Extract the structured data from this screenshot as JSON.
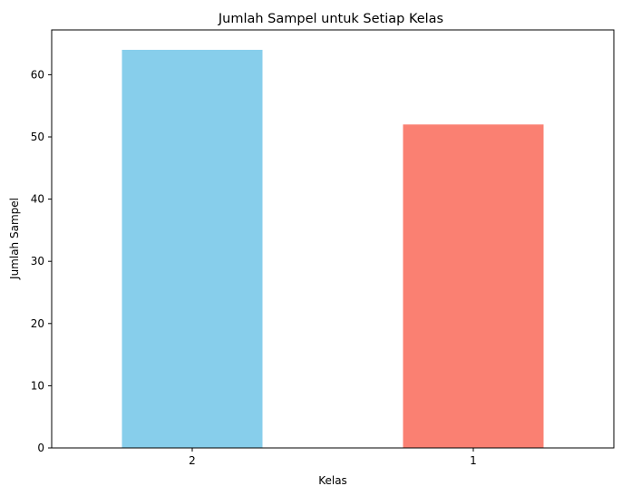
{
  "chart_data": {
    "type": "bar",
    "title": "Jumlah Sampel untuk Setiap Kelas",
    "xlabel": "Kelas",
    "ylabel": "Jumlah Sampel",
    "categories": [
      "2",
      "1"
    ],
    "values": [
      64,
      52
    ],
    "colors": [
      "#87CEEB",
      "#FA8072"
    ],
    "ylim": [
      0,
      67.2
    ],
    "yticks": [
      0,
      10,
      20,
      30,
      40,
      50,
      60
    ],
    "grid": false
  }
}
